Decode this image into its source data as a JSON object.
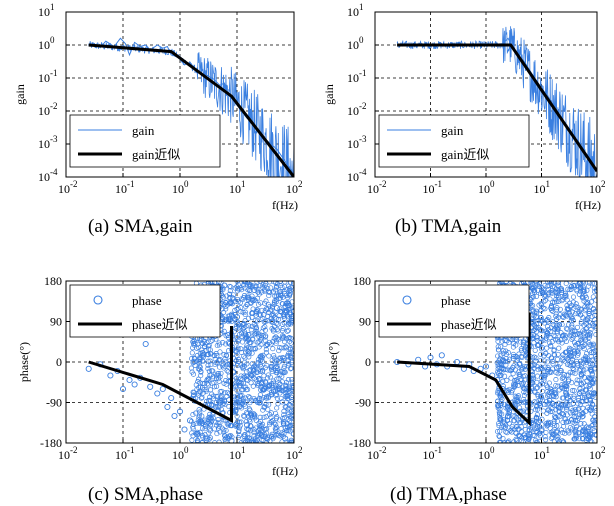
{
  "colors": {
    "measured": "#3a7fe0",
    "approx": "#000000",
    "grid": "#000000",
    "background": "#ffffff"
  },
  "chart_data": [
    {
      "id": "a",
      "type": "line",
      "xscale": "log",
      "yscale": "log",
      "xlim": [
        0.01,
        100
      ],
      "ylim": [
        0.0001,
        10
      ],
      "xlabel": "f(Hz)",
      "ylabel": "gain",
      "caption": "(a) SMA,gain",
      "x_ticks": [
        "10-2",
        "10-1",
        "100",
        "101",
        "102"
      ],
      "y_ticks": [
        "10-4",
        "10-3",
        "10-2",
        "10-1",
        "100",
        "101"
      ],
      "grid": true,
      "legend_position": "lower-left",
      "series": [
        {
          "name": "gain",
          "style": "thin-line",
          "x": [
            0.025,
            0.04,
            0.05,
            0.07,
            0.09,
            0.11,
            0.13,
            0.16,
            0.2,
            0.25,
            0.3,
            0.4,
            0.5,
            0.6,
            0.7,
            0.9,
            1.2,
            1.5,
            2,
            3,
            4,
            5,
            6,
            7,
            8,
            10,
            15,
            20,
            30,
            50,
            70,
            100
          ],
          "y": [
            1.0,
            0.85,
            1.3,
            0.9,
            1.6,
            1.1,
            0.5,
            1.2,
            0.9,
            1.0,
            0.7,
            1.0,
            0.8,
            0.9,
            0.5,
            0.45,
            0.25,
            0.3,
            0.15,
            0.12,
            0.09,
            0.06,
            0.07,
            0.03,
            0.025,
            0.015,
            0.006,
            0.004,
            0.0015,
            0.0007,
            0.0003,
            0.00012
          ]
        },
        {
          "name": "gain近似",
          "style": "thick-line",
          "x": [
            0.025,
            0.7,
            8,
            100
          ],
          "y": [
            1.0,
            0.63,
            0.028,
            0.0001
          ]
        }
      ]
    },
    {
      "id": "b",
      "type": "line",
      "xscale": "log",
      "yscale": "log",
      "xlim": [
        0.01,
        100
      ],
      "ylim": [
        0.0001,
        10
      ],
      "xlabel": "f(Hz)",
      "ylabel": "gain",
      "caption": "(b) TMA,gain",
      "x_ticks": [
        "10-2",
        "10-1",
        "100",
        "101",
        "102"
      ],
      "y_ticks": [
        "10-4",
        "10-3",
        "10-2",
        "10-1",
        "100",
        "101"
      ],
      "grid": true,
      "legend_position": "lower-left",
      "series": [
        {
          "name": "gain",
          "style": "thin-line",
          "x": [
            0.025,
            0.1,
            0.5,
            1.0,
            1.5,
            2.0,
            2.5,
            2.8,
            3.5,
            5,
            7,
            10,
            15,
            20,
            30,
            50,
            70,
            100
          ],
          "y": [
            1.0,
            1.0,
            1.0,
            1.0,
            1.05,
            1.1,
            1.6,
            1.1,
            0.6,
            0.3,
            0.12,
            0.05,
            0.02,
            0.008,
            0.003,
            0.001,
            0.0004,
            0.00015
          ]
        },
        {
          "name": "gain近似",
          "style": "thick-line",
          "x": [
            0.025,
            2.8,
            100
          ],
          "y": [
            1.0,
            1.0,
            0.00015
          ]
        }
      ]
    },
    {
      "id": "c",
      "type": "scatter",
      "xscale": "log",
      "yscale": "linear",
      "xlim": [
        0.01,
        100
      ],
      "ylim": [
        -180,
        180
      ],
      "xlabel": "f(Hz)",
      "ylabel": "phase(°)",
      "caption": "(c) SMA,phase",
      "x_ticks": [
        "10-2",
        "10-1",
        "100",
        "101",
        "102"
      ],
      "y_ticks": [
        "-180",
        "-90",
        "0",
        "90",
        "180"
      ],
      "grid": true,
      "legend_position": "top-left",
      "series": [
        {
          "name": "phase",
          "style": "circle-markers",
          "x": [
            0.025,
            0.04,
            0.06,
            0.08,
            0.1,
            0.13,
            0.16,
            0.2,
            0.25,
            0.3,
            0.4,
            0.5,
            0.6,
            0.7,
            0.8,
            1.0,
            1.2,
            1.5,
            2.0,
            2.5,
            3,
            4,
            5,
            6,
            7,
            8,
            10,
            15,
            20,
            30,
            50,
            70,
            100
          ],
          "y": [
            -15,
            -5,
            -30,
            -20,
            -60,
            -40,
            -50,
            -35,
            40,
            -55,
            -70,
            -60,
            -100,
            -80,
            -120,
            -110,
            -150,
            -130,
            -160,
            20,
            -170,
            150,
            -90,
            170,
            60,
            -175,
            100,
            -140,
            160,
            -60,
            120,
            -170,
            175
          ]
        },
        {
          "name": "phase近似",
          "style": "thick-line",
          "x": [
            0.025,
            0.5,
            2.0,
            8.0,
            8.0
          ],
          "y": [
            0,
            -50,
            -90,
            -130,
            80
          ]
        }
      ]
    },
    {
      "id": "d",
      "type": "scatter",
      "xscale": "log",
      "yscale": "linear",
      "xlim": [
        0.01,
        100
      ],
      "ylim": [
        -180,
        180
      ],
      "xlabel": "f(Hz)",
      "ylabel": "phase(°)",
      "caption": "(d) TMA,phase",
      "x_ticks": [
        "10-2",
        "10-1",
        "100",
        "101",
        "102"
      ],
      "y_ticks": [
        "-180",
        "-90",
        "0",
        "90",
        "180"
      ],
      "grid": true,
      "legend_position": "top-left",
      "series": [
        {
          "name": "phase",
          "style": "circle-markers",
          "x": [
            0.025,
            0.04,
            0.06,
            0.08,
            0.1,
            0.13,
            0.16,
            0.2,
            0.3,
            0.4,
            0.5,
            0.6,
            0.8,
            1.0,
            1.3,
            1.6,
            2.0,
            2.5,
            3.0,
            4.0,
            5.0,
            6.0,
            7.0,
            8.0,
            10,
            15,
            20,
            30,
            50,
            70,
            100
          ],
          "y": [
            0,
            -5,
            5,
            -10,
            10,
            -5,
            15,
            -10,
            0,
            -15,
            -5,
            -20,
            -15,
            -10,
            -30,
            -40,
            -60,
            -120,
            -90,
            150,
            170,
            -160,
            60,
            100,
            -150,
            120,
            170,
            -80,
            175,
            -170,
            160
          ]
        },
        {
          "name": "phase近似",
          "style": "thick-line",
          "x": [
            0.025,
            0.5,
            1.5,
            3.0,
            6.0,
            6.0
          ],
          "y": [
            0,
            -10,
            -40,
            -100,
            -135,
            110
          ]
        }
      ]
    }
  ]
}
